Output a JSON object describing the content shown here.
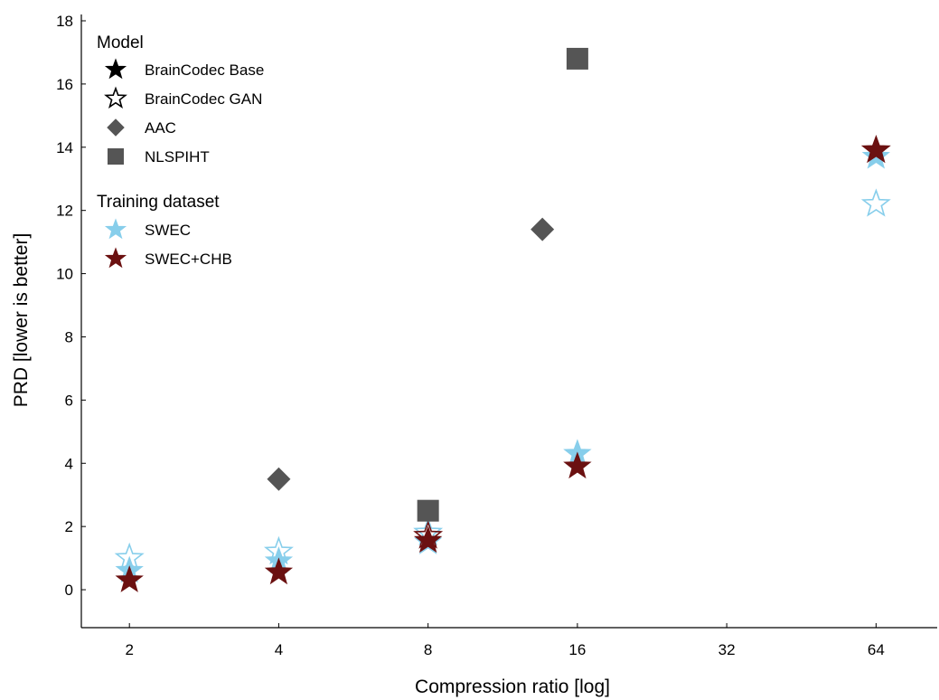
{
  "chart_data": {
    "type": "scatter",
    "xlabel": "Compression ratio [log]",
    "ylabel": "PRD [lower is better]",
    "x_scale": "log2",
    "xlim": [
      1.6,
      85
    ],
    "ylim": [
      -1.2,
      18.2
    ],
    "x_ticks": [
      2,
      4,
      8,
      16,
      32,
      64
    ],
    "y_ticks": [
      0,
      2,
      4,
      6,
      8,
      10,
      12,
      14,
      16,
      18
    ],
    "grid": false,
    "legend_position": "top-left",
    "colors": {
      "SWEC": "#87ceeb",
      "SWEC+CHB": "#6b1111",
      "baseline": "#555555",
      "legend_marker": "#000000"
    },
    "legend": {
      "model_title": "Model",
      "model_items": [
        {
          "label": "BrainCodec Base",
          "marker": "star-filled"
        },
        {
          "label": "BrainCodec GAN",
          "marker": "star-open"
        },
        {
          "label": "AAC",
          "marker": "diamond"
        },
        {
          "label": "NLSPIHT",
          "marker": "square"
        }
      ],
      "dataset_title": "Training dataset",
      "dataset_items": [
        {
          "label": "SWEC",
          "color": "#87ceeb"
        },
        {
          "label": "SWEC+CHB",
          "color": "#6b1111"
        }
      ]
    },
    "series": [
      {
        "model": "BrainCodec GAN",
        "dataset": "SWEC",
        "marker": "star-open",
        "color": "#87ceeb",
        "points": [
          {
            "x": 2,
            "y": 1.0
          },
          {
            "x": 4,
            "y": 1.2
          },
          {
            "x": 8,
            "y": 1.8
          },
          {
            "x": 64,
            "y": 12.2
          }
        ]
      },
      {
        "model": "BrainCodec Base",
        "dataset": "SWEC",
        "marker": "star-filled",
        "color": "#87ceeb",
        "points": [
          {
            "x": 2,
            "y": 0.6
          },
          {
            "x": 4,
            "y": 0.9
          },
          {
            "x": 8,
            "y": 1.5
          },
          {
            "x": 16,
            "y": 4.3
          },
          {
            "x": 64,
            "y": 13.7
          }
        ]
      },
      {
        "model": "BrainCodec GAN",
        "dataset": "SWEC+CHB",
        "marker": "star-open",
        "color": "#6b1111",
        "points": [
          {
            "x": 8,
            "y": 1.7
          },
          {
            "x": 64,
            "y": 13.9
          }
        ]
      },
      {
        "model": "BrainCodec Base",
        "dataset": "SWEC+CHB",
        "marker": "star-filled",
        "color": "#6b1111",
        "points": [
          {
            "x": 2,
            "y": 0.3
          },
          {
            "x": 4,
            "y": 0.55
          },
          {
            "x": 8,
            "y": 1.55
          },
          {
            "x": 16,
            "y": 3.9
          },
          {
            "x": 64,
            "y": 13.9
          }
        ]
      },
      {
        "model": "AAC",
        "dataset": "",
        "marker": "diamond",
        "color": "#555555",
        "points": [
          {
            "x": 4,
            "y": 3.5
          },
          {
            "x": 13.6,
            "y": 11.4
          }
        ]
      },
      {
        "model": "NLSPIHT",
        "dataset": "",
        "marker": "square",
        "color": "#555555",
        "points": [
          {
            "x": 8,
            "y": 2.5
          },
          {
            "x": 16,
            "y": 16.8
          }
        ]
      }
    ]
  }
}
